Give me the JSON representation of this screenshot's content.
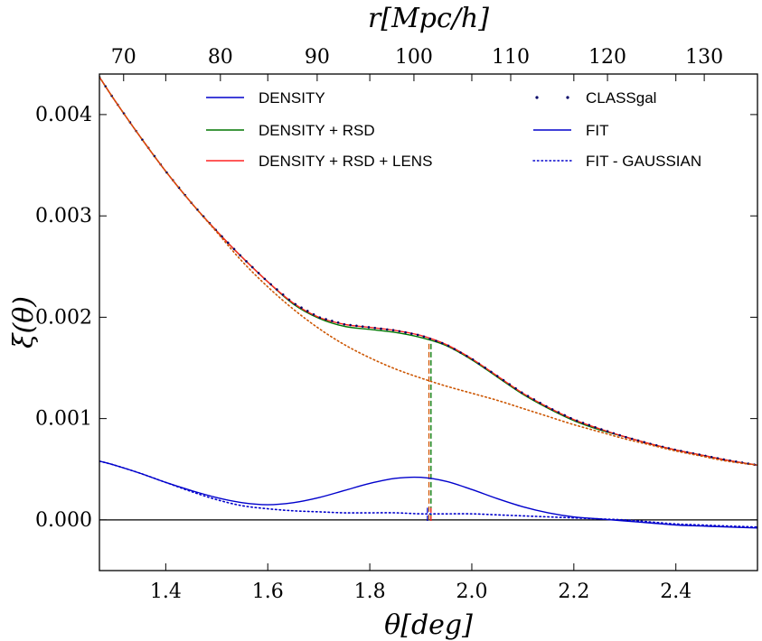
{
  "chart_data": {
    "type": "line",
    "title": "",
    "xlabel": "θ[deg]",
    "ylabel": "ξ(θ)",
    "x2label": "r[Mpc/h]",
    "xlim": [
      1.27,
      2.56
    ],
    "ylim": [
      -0.0005,
      0.0044
    ],
    "x2lim": [
      67.5,
      135.5
    ],
    "grid": false,
    "legend_placement": "top",
    "xticks": [
      {
        "value": 1.4,
        "label": "1.4"
      },
      {
        "value": 1.6,
        "label": "1.6"
      },
      {
        "value": 1.8,
        "label": "1.8"
      },
      {
        "value": 2.0,
        "label": "2.0"
      },
      {
        "value": 2.2,
        "label": "2.2"
      },
      {
        "value": 2.4,
        "label": "2.4"
      }
    ],
    "yticks": [
      {
        "value": 0.0,
        "label": "0.000"
      },
      {
        "value": 0.001,
        "label": "0.001"
      },
      {
        "value": 0.002,
        "label": "0.002"
      },
      {
        "value": 0.003,
        "label": "0.003"
      },
      {
        "value": 0.004,
        "label": "0.004"
      }
    ],
    "x2ticks": [
      {
        "value": 70,
        "label": "70"
      },
      {
        "value": 80,
        "label": "80"
      },
      {
        "value": 90,
        "label": "90"
      },
      {
        "value": 100,
        "label": "100"
      },
      {
        "value": 110,
        "label": "110"
      },
      {
        "value": 120,
        "label": "120"
      },
      {
        "value": 130,
        "label": "130"
      }
    ],
    "legend": [
      {
        "label": "DENSITY",
        "color": "#0000cc",
        "style": "solid"
      },
      {
        "label": "DENSITY + RSD",
        "color": "#007700",
        "style": "solid"
      },
      {
        "label": "DENSITY + RSD + LENS",
        "color": "#ff2222",
        "style": "solid"
      },
      {
        "label": "CLASSgal",
        "color": "#000066",
        "style": "points"
      },
      {
        "label": "FIT",
        "color": "#0000cc",
        "style": "solid"
      },
      {
        "label": "FIT - GAUSSIAN",
        "color": "#0000cc",
        "style": "dotted"
      }
    ],
    "x": [
      1.27,
      1.3,
      1.35,
      1.4,
      1.45,
      1.5,
      1.55,
      1.6,
      1.65,
      1.7,
      1.75,
      1.8,
      1.85,
      1.9,
      1.95,
      2.0,
      2.05,
      2.1,
      2.15,
      2.2,
      2.25,
      2.3,
      2.35,
      2.4,
      2.45,
      2.5,
      2.56
    ],
    "series": [
      {
        "name": "DENSITY",
        "color": "#0000cc",
        "style": "solid",
        "values": [
          0.00058,
          0.00054,
          0.00046,
          0.00037,
          0.00029,
          0.00022,
          0.00017,
          0.00015,
          0.00017,
          0.00022,
          0.00029,
          0.00036,
          0.00041,
          0.00042,
          0.00038,
          0.0003,
          0.00021,
          0.00013,
          7e-05,
          3e-05,
          1e-05,
          -1e-05,
          -3e-05,
          -5e-05,
          -6e-05,
          -7e-05,
          -8e-05
        ]
      },
      {
        "name": "DENSITY + RSD",
        "color": "#007700",
        "style": "solid",
        "values": [
          0.00437,
          0.00414,
          0.00378,
          0.00344,
          0.00313,
          0.00285,
          0.00259,
          0.00235,
          0.00213,
          0.00199,
          0.00191,
          0.00188,
          0.00185,
          0.0018,
          0.00172,
          0.00158,
          0.00141,
          0.00124,
          0.0011,
          0.00098,
          0.00089,
          0.00082,
          0.00075,
          0.00069,
          0.00064,
          0.00059,
          0.00054
        ]
      },
      {
        "name": "DENSITY + RSD + LENS",
        "color": "#ff2222",
        "style": "solid",
        "values": [
          0.00437,
          0.00414,
          0.00378,
          0.00344,
          0.00313,
          0.00285,
          0.00259,
          0.00235,
          0.00214,
          0.002,
          0.00193,
          0.0019,
          0.00187,
          0.00182,
          0.00173,
          0.00159,
          0.00142,
          0.00125,
          0.00111,
          0.00099,
          0.0009,
          0.00082,
          0.00075,
          0.00069,
          0.00064,
          0.00059,
          0.00054
        ]
      },
      {
        "name": "CLASSgal",
        "color": "#000066",
        "style": "points",
        "values": [
          0.00437,
          0.00414,
          0.00378,
          0.00344,
          0.00313,
          0.00285,
          0.00259,
          0.00235,
          0.00214,
          0.002,
          0.00193,
          0.0019,
          0.00187,
          0.00182,
          0.00173,
          0.00159,
          0.00142,
          0.00125,
          0.00111,
          0.00099,
          0.0009,
          0.00082,
          0.00075,
          0.00069,
          0.00064,
          0.00059,
          0.00054
        ]
      },
      {
        "name": "FIT - GAUSSIAN",
        "color": "#cc5500",
        "style": "dotted",
        "values": [
          0.00437,
          0.00414,
          0.00378,
          0.00344,
          0.00313,
          0.00284,
          0.00255,
          0.0023,
          0.00208,
          0.00189,
          0.00173,
          0.0016,
          0.00149,
          0.0014,
          0.00132,
          0.00125,
          0.00118,
          0.0011,
          0.00102,
          0.00094,
          0.00087,
          0.0008,
          0.00074,
          0.00068,
          0.00063,
          0.00058,
          0.00054
        ]
      },
      {
        "name": "FIT - GAUSSIAN",
        "color": "#0000cc",
        "style": "dotted",
        "values": [
          0.00058,
          0.00054,
          0.00046,
          0.00037,
          0.00028,
          0.0002,
          0.00014,
          0.00011,
          9e-05,
          8e-05,
          7e-05,
          7e-05,
          7e-05,
          6e-05,
          6e-05,
          6e-05,
          5e-05,
          4e-05,
          3e-05,
          2e-05,
          1e-05,
          0.0,
          -2e-05,
          -4e-05,
          -5e-05,
          -6e-05,
          -7e-05
        ]
      }
    ],
    "vlines": [
      {
        "x": 1.916,
        "y0": 0.0,
        "y1": 0.00176,
        "color": "#cc5500"
      },
      {
        "x": 1.92,
        "y0": 0.0,
        "y1": 0.00176,
        "color": "#007700"
      },
      {
        "x": 1.913,
        "y0": -1e-05,
        "y1": 0.00012,
        "color": "#0000cc"
      },
      {
        "x": 1.92,
        "y0": -1e-05,
        "y1": 0.00012,
        "color": "#ff2222"
      }
    ],
    "hlines": [
      {
        "y": 0.0,
        "color": "#000000"
      }
    ]
  }
}
